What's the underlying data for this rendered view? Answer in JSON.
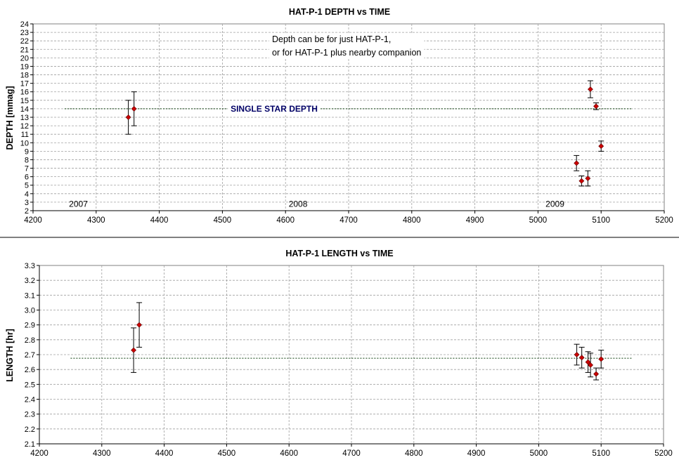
{
  "chart_data": [
    {
      "type": "scatter",
      "title": "HAT-P-1 DEPTH vs TIME",
      "xlabel": "",
      "ylabel": "DEPTH [mmag]",
      "xlim": [
        4200,
        5200
      ],
      "ylim": [
        2,
        24
      ],
      "xticks": [
        4200,
        4300,
        4400,
        4500,
        4600,
        4700,
        4800,
        4900,
        5000,
        5100,
        5200
      ],
      "yticks": [
        2,
        3,
        4,
        5,
        6,
        7,
        8,
        9,
        10,
        11,
        12,
        13,
        14,
        15,
        16,
        17,
        18,
        19,
        20,
        21,
        22,
        23,
        24
      ],
      "grid": true,
      "points": [
        {
          "x": 4351,
          "y": 13.0,
          "err": 2.0
        },
        {
          "x": 4360,
          "y": 14.0,
          "err": 2.0
        },
        {
          "x": 5061,
          "y": 7.6,
          "err": 0.9
        },
        {
          "x": 5069,
          "y": 5.5,
          "err": 0.6
        },
        {
          "x": 5079,
          "y": 5.8,
          "err": 0.9
        },
        {
          "x": 5083,
          "y": 16.3,
          "err": 1.0
        },
        {
          "x": 5092,
          "y": 14.3,
          "err": 0.4
        },
        {
          "x": 5100,
          "y": 9.6,
          "err": 0.6
        }
      ],
      "reference_line": {
        "x_start": 4250,
        "x_end": 5150,
        "y": 14.0,
        "label": "SINGLE STAR DEPTH"
      },
      "year_labels": [
        {
          "text": "2007",
          "x": 4257,
          "y": 2.8
        },
        {
          "text": "2008",
          "x": 4605,
          "y": 2.8
        },
        {
          "text": "2009",
          "x": 5012,
          "y": 2.8
        }
      ],
      "annotation": [
        "Depth can be for just HAT-P-1,",
        "or for HAT-P-1 plus nearby companion"
      ],
      "colors": {
        "marker": "#cc0000",
        "reference_line": "#0a3d0a",
        "reference_label": "#000066"
      }
    },
    {
      "type": "scatter",
      "title": "HAT-P-1 LENGTH vs TIME",
      "xlabel": "",
      "ylabel": "LENGTH [hr]",
      "xlim": [
        4200,
        5200
      ],
      "ylim": [
        2.1,
        3.3
      ],
      "xticks": [
        4200,
        4300,
        4400,
        4500,
        4600,
        4700,
        4800,
        4900,
        5000,
        5100,
        5200
      ],
      "yticks": [
        "2.1",
        "2.2",
        "2.3",
        "2.4",
        "2.5",
        "2.6",
        "2.7",
        "2.8",
        "2.9",
        "3.0",
        "3.1",
        "3.2",
        "3.3"
      ],
      "grid": true,
      "points": [
        {
          "x": 4351,
          "y": 2.73,
          "err": 0.15
        },
        {
          "x": 4360,
          "y": 2.9,
          "err": 0.15
        },
        {
          "x": 5061,
          "y": 2.7,
          "err": 0.07
        },
        {
          "x": 5069,
          "y": 2.68,
          "err": 0.07
        },
        {
          "x": 5079,
          "y": 2.65,
          "err": 0.07
        },
        {
          "x": 5083,
          "y": 2.63,
          "err": 0.08
        },
        {
          "x": 5092,
          "y": 2.57,
          "err": 0.04
        },
        {
          "x": 5100,
          "y": 2.67,
          "err": 0.06
        }
      ],
      "reference_line": {
        "x_start": 4250,
        "x_end": 5150,
        "y": 2.676
      },
      "colors": {
        "marker": "#cc0000",
        "reference_line": "#0a3d0a"
      }
    }
  ]
}
